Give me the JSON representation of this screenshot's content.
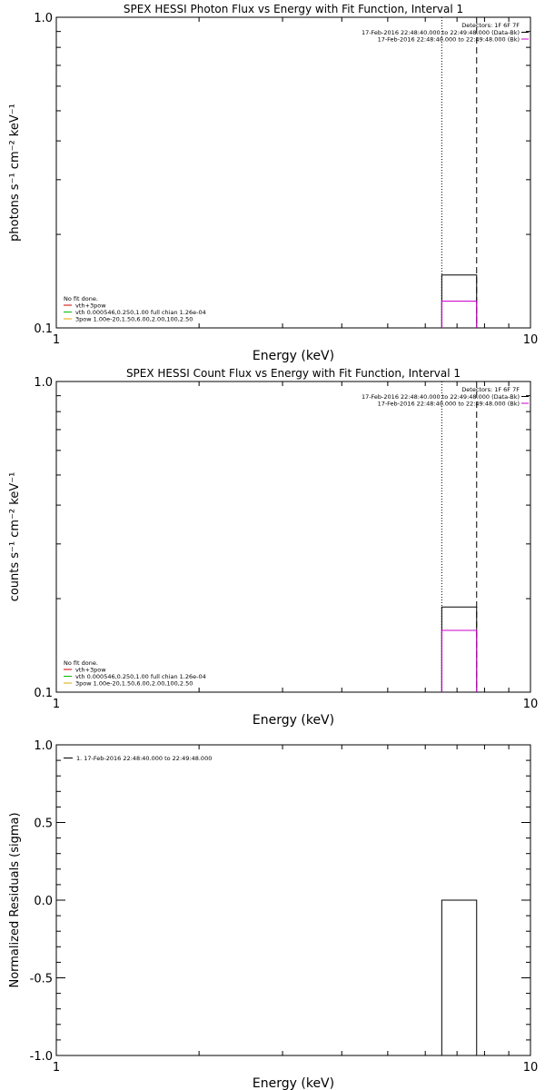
{
  "chart_data": [
    {
      "type": "line",
      "title": "SPEX HESSI Photon Flux vs Energy with Fit Function, Interval 1",
      "xlabel": "Energy (keV)",
      "ylabel": "photons s⁻¹ cm⁻² keV⁻¹",
      "xscale": "log",
      "yscale": "log",
      "xlim": [
        1,
        10
      ],
      "ylim": [
        0.1,
        1.0
      ],
      "x_tick_labels": [
        {
          "value": 1,
          "label": "1"
        },
        {
          "value": 10,
          "label": "10"
        }
      ],
      "y_tick_labels": [
        {
          "value": 0.1,
          "label": "0.1"
        },
        {
          "value": 1.0,
          "label": "1.0"
        }
      ],
      "detectors_label": "Detectors: 1F 6F 7F",
      "series": [
        {
          "name": "17-Feb-2016 22:48:40.000 to 22:49:48.000 (Data-Bk)",
          "color": "#000000",
          "x": [
            6.5,
            7.7
          ],
          "y": [
            0.148,
            0.148
          ]
        },
        {
          "name": "17-Feb-2016 22:48:40.000 to 22:49:48.000 (Bk)",
          "color": "#cc00cc",
          "x": [
            6.5,
            7.7
          ],
          "y": [
            0.122,
            0.122
          ]
        }
      ],
      "vlines": [
        {
          "x": 6.5,
          "style": "dotted"
        },
        {
          "x": 7.7,
          "style": "dashed"
        }
      ],
      "fit_legend": [
        {
          "text": "No fit done.",
          "color": ""
        },
        {
          "text": "vth+3pow",
          "color": "#cc0000"
        },
        {
          "text": "vth 0.000546,0.250,1.00  full chian 1.26e-04",
          "color": "#00bb00"
        },
        {
          "text": "3pow 1.00e-20,1.50,6.00,2.00,100,2.50",
          "color": "#ddaa00"
        }
      ]
    },
    {
      "type": "line",
      "title": "SPEX HESSI Count Flux vs Energy with Fit Function, Interval 1",
      "xlabel": "Energy (keV)",
      "ylabel": "counts s⁻¹ cm⁻² keV⁻¹",
      "xscale": "log",
      "yscale": "log",
      "xlim": [
        1,
        10
      ],
      "ylim": [
        0.1,
        1.0
      ],
      "x_tick_labels": [
        {
          "value": 1,
          "label": "1"
        },
        {
          "value": 10,
          "label": "10"
        }
      ],
      "y_tick_labels": [
        {
          "value": 0.1,
          "label": "0.1"
        },
        {
          "value": 1.0,
          "label": "1.0"
        }
      ],
      "detectors_label": "Detectors: 1F 6F 7F",
      "series": [
        {
          "name": "17-Feb-2016 22:48:40.000 to 22:49:48.000 (Data-Bk)",
          "color": "#000000",
          "x": [
            6.5,
            7.7
          ],
          "y": [
            0.188,
            0.188
          ]
        },
        {
          "name": "17-Feb-2016 22:48:40.000 to 22:49:48.000 (Bk)",
          "color": "#cc00cc",
          "x": [
            6.5,
            7.7
          ],
          "y": [
            0.158,
            0.158
          ]
        }
      ],
      "vlines": [
        {
          "x": 6.5,
          "style": "dotted"
        },
        {
          "x": 7.7,
          "style": "dashed"
        }
      ],
      "fit_legend": [
        {
          "text": "No fit done.",
          "color": ""
        },
        {
          "text": "vth+3pow",
          "color": "#cc0000"
        },
        {
          "text": "vth 0.000546,0.250,1.00  full chian 1.26e-04",
          "color": "#00bb00"
        },
        {
          "text": "3pow 1.00e-20,1.50,6.00,2.00,100,2.50",
          "color": "#ddaa00"
        }
      ]
    },
    {
      "type": "line",
      "title": "",
      "xlabel": "Energy (keV)",
      "ylabel": "Normalized Residuals (sigma)",
      "xscale": "log",
      "yscale": "linear",
      "xlim": [
        1,
        10
      ],
      "ylim": [
        -1.0,
        1.0
      ],
      "x_tick_labels": [
        {
          "value": 1,
          "label": "1"
        },
        {
          "value": 10,
          "label": "10"
        }
      ],
      "y_tick_labels": [
        {
          "value": 1.0,
          "label": "1.0"
        },
        {
          "value": 0.5,
          "label": "0.5"
        },
        {
          "value": 0.0,
          "label": "0.0"
        },
        {
          "value": -0.5,
          "label": "-0.5"
        },
        {
          "value": -1.0,
          "label": "-1.0"
        }
      ],
      "legend": [
        {
          "text": "1. 17-Feb-2016 22:48:40.000 to 22:49:48.000",
          "color": "#000000"
        }
      ],
      "series": [
        {
          "name": "1. 17-Feb-2016 22:48:40.000 to 22:49:48.000",
          "color": "#000000",
          "x": [
            6.5,
            7.7
          ],
          "y": [
            0.0,
            0.0
          ]
        }
      ]
    }
  ]
}
